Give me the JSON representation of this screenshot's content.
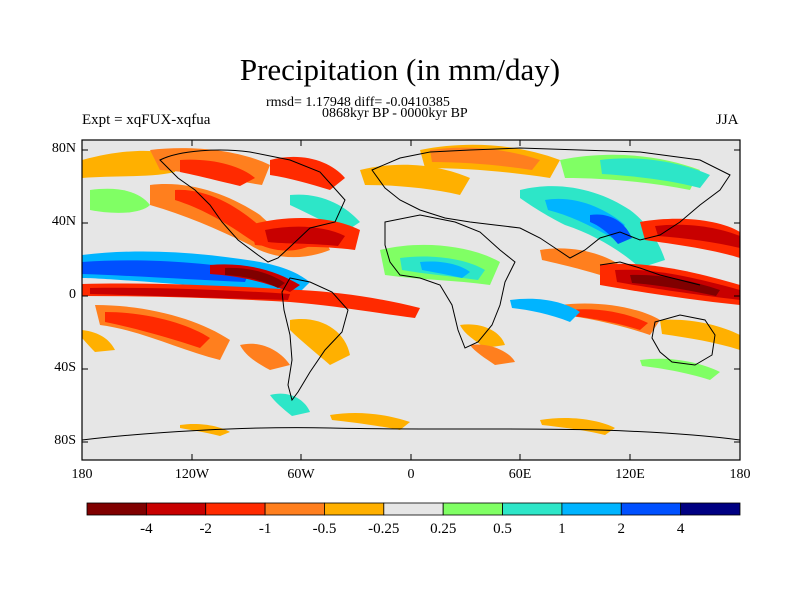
{
  "title": "Precipitation (in mm/day)",
  "stats": "rmsd= 1.17948 diff= -0.0410385",
  "period": "0868kyr BP - 0000kyr BP",
  "expt_label": "Expt = xqFUX-xqfua",
  "season": "JJA",
  "lat_ticks": [
    "80N",
    "40N",
    "0",
    "40S",
    "80S"
  ],
  "lon_ticks": [
    "180",
    "120W",
    "60W",
    "0",
    "60E",
    "120E",
    "180"
  ],
  "colorbar": {
    "colors": [
      "#800000",
      "#c80000",
      "#ff2a00",
      "#ff7f1e",
      "#ffb000",
      "#e6e6e6",
      "#80ff64",
      "#2de6c8",
      "#00b4ff",
      "#0050ff",
      "#000082"
    ],
    "labels": [
      "-4",
      "-2",
      "-1",
      "-0.5",
      "-0.25",
      "0.25",
      "0.5",
      "1",
      "2",
      "4"
    ]
  }
}
